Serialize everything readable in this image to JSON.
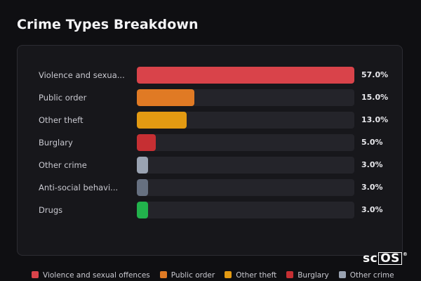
{
  "header": {
    "title": "Crime Types Breakdown"
  },
  "chart_data": {
    "type": "bar",
    "orientation": "horizontal",
    "title": "Crime Types Breakdown",
    "xlim": [
      0,
      57
    ],
    "categories": [
      "Violence and sexua...",
      "Public order",
      "Other theft",
      "Burglary",
      "Other crime",
      "Anti-social behavi...",
      "Drugs"
    ],
    "values": [
      57.0,
      15.0,
      13.0,
      5.0,
      3.0,
      3.0,
      3.0
    ],
    "value_labels": [
      "57.0%",
      "15.0%",
      "13.0%",
      "5.0%",
      "3.0%",
      "3.0%",
      "3.0%"
    ],
    "colors": [
      "#d9434a",
      "#e07a24",
      "#e39a12",
      "#c62f33",
      "#9aa3b2",
      "#667080",
      "#22b24c"
    ],
    "legend": {
      "position": "bottom",
      "items": [
        {
          "label": "Violence and sexual offences",
          "color": "#d9434a"
        },
        {
          "label": "Public order",
          "color": "#e07a24"
        },
        {
          "label": "Other theft",
          "color": "#e39a12"
        },
        {
          "label": "Burglary",
          "color": "#c62f33"
        },
        {
          "label": "Other crime",
          "color": "#9aa3b2"
        }
      ]
    }
  },
  "branding": {
    "logo_text_a": "sc",
    "logo_text_b": "OS",
    "logo_mark": "®"
  }
}
